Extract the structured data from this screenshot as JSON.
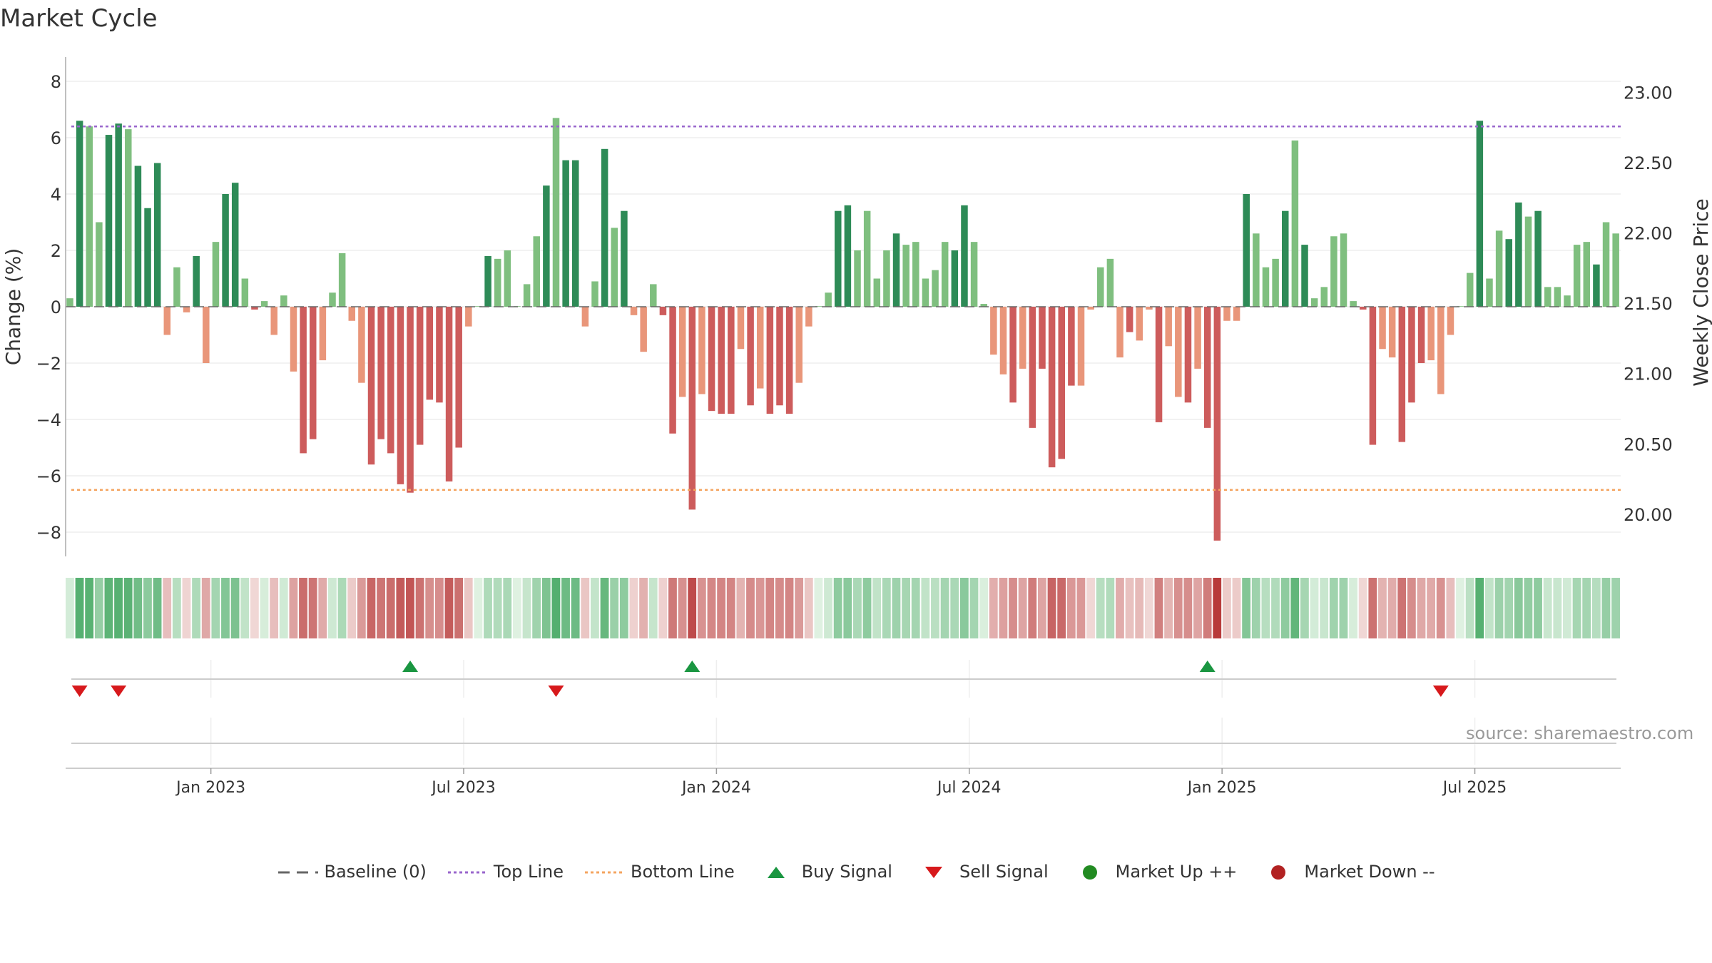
{
  "chart_data": {
    "type": "bar",
    "title": "Market Cycle",
    "source": "source: sharemaestro.com",
    "ylabel_left": "Change (%)",
    "ylabel_right": "Weekly Close Price",
    "ylim_left": [
      -8.8,
      8.8
    ],
    "ylim_right": [
      19.7,
      23.25
    ],
    "yticks_left": [
      "8",
      "6",
      "4",
      "2",
      "0",
      "−2",
      "−4",
      "−6",
      "−8"
    ],
    "yticks_left_values": [
      8,
      6,
      4,
      2,
      0,
      -2,
      -4,
      -6,
      -8
    ],
    "yticks_right": [
      "23.00",
      "22.50",
      "22.00",
      "21.50",
      "21.00",
      "20.50",
      "20.00"
    ],
    "yticks_right_values": [
      23.0,
      22.5,
      22.0,
      21.5,
      21.0,
      20.5,
      20.0
    ],
    "xticks": [
      "Jan 2023",
      "Jul 2023",
      "Jan 2024",
      "Jul 2024",
      "Jan 2025",
      "Jul 2025"
    ],
    "xtick_week_index": [
      14.5,
      40.5,
      66.5,
      92.5,
      118.5,
      144.5
    ],
    "top_line": 6.4,
    "bottom_line": -6.5,
    "values": [
      0.3,
      6.6,
      6.4,
      3.0,
      6.1,
      6.5,
      6.3,
      5.0,
      3.5,
      5.1,
      -1.0,
      1.4,
      -0.2,
      1.8,
      -2.0,
      2.3,
      4.0,
      4.4,
      1.0,
      -0.1,
      0.2,
      -1.0,
      0.4,
      -2.3,
      -5.2,
      -4.7,
      -1.9,
      0.5,
      1.9,
      -0.5,
      -2.7,
      -5.6,
      -4.7,
      -5.2,
      -6.3,
      -6.6,
      -4.9,
      -3.3,
      -3.4,
      -6.2,
      -5.0,
      -0.7,
      0.0,
      1.8,
      1.7,
      2.0,
      0.0,
      0.8,
      2.5,
      4.3,
      6.7,
      5.2,
      5.2,
      -0.7,
      0.9,
      5.6,
      2.8,
      3.4,
      -0.3,
      -1.6,
      0.8,
      -0.3,
      -4.5,
      -3.2,
      -7.2,
      -3.1,
      -3.7,
      -3.8,
      -3.8,
      -1.5,
      -3.5,
      -2.9,
      -3.8,
      -3.5,
      -3.8,
      -2.7,
      -0.7,
      0.0,
      0.5,
      3.4,
      3.6,
      2.0,
      3.4,
      1.0,
      2.0,
      2.6,
      2.2,
      2.3,
      1.0,
      1.3,
      2.3,
      2.0,
      3.6,
      2.3,
      0.1,
      -1.7,
      -2.4,
      -3.4,
      -2.2,
      -4.3,
      -2.2,
      -5.7,
      -5.4,
      -2.8,
      -2.8,
      -0.1,
      1.4,
      1.7,
      -1.8,
      -0.9,
      -1.2,
      -0.1,
      -4.1,
      -1.4,
      -3.2,
      -3.4,
      -2.2,
      -4.3,
      -8.3,
      -0.5,
      -0.5,
      4.0,
      2.6,
      1.4,
      1.7,
      3.4,
      5.9,
      2.2,
      0.3,
      0.7,
      2.5,
      2.6,
      0.2,
      -0.1,
      -4.9,
      -1.5,
      -1.8,
      -4.8,
      -3.4,
      -2.0,
      -1.9,
      -3.1,
      -1.0,
      0.0,
      1.2,
      6.6,
      1.0,
      2.7,
      2.4,
      3.7,
      3.2,
      3.4,
      0.7,
      0.7,
      0.4,
      2.2,
      2.3,
      1.5,
      3.0,
      2.6
    ],
    "buy_signals_week_index": [
      35,
      64,
      117
    ],
    "sell_signals_week_index": [
      1,
      5,
      50,
      141
    ],
    "colors": {
      "up_strong": "#2e8b57",
      "up_light": "#7fbf7f",
      "down_strong": "#cd5c5c",
      "down_light": "#e9967a",
      "top_line": "#9966cc",
      "bottom_line": "#f4a460",
      "buy": "#1a9641",
      "sell": "#d7191c",
      "market_up": "#228b22",
      "market_down": "#b22222"
    },
    "legend": [
      {
        "label": "Baseline (0)",
        "kind": "dash-gray"
      },
      {
        "label": "Top Line",
        "kind": "dot-purple"
      },
      {
        "label": "Bottom Line",
        "kind": "dot-orange"
      },
      {
        "label": "Buy Signal",
        "kind": "tri-up"
      },
      {
        "label": "Sell Signal",
        "kind": "tri-down"
      },
      {
        "label": "Market Up ++",
        "kind": "dot-green"
      },
      {
        "label": "Market Down --",
        "kind": "dot-red"
      }
    ]
  }
}
